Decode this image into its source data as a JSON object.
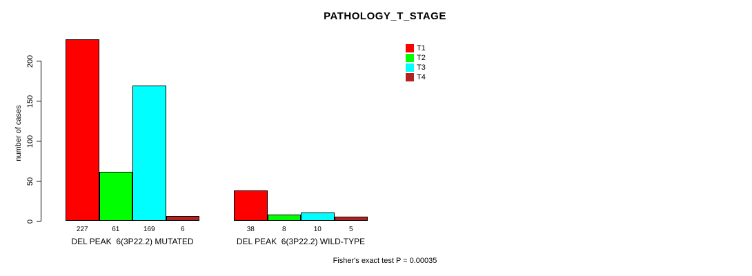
{
  "chart_data": {
    "type": "bar",
    "title": "PATHOLOGY_T_STAGE",
    "ylabel": "number of cases",
    "xlabel": "",
    "yticks": [
      0,
      50,
      100,
      150,
      200
    ],
    "ylim": [
      0,
      232
    ],
    "grid": false,
    "legend_position": "top-right",
    "categories": [
      "DEL PEAK  6(3P22.2) MUTATED",
      "DEL PEAK  6(3P22.2) WILD-TYPE"
    ],
    "series": [
      {
        "name": "T1",
        "color": "#FF0000",
        "values": [
          227,
          38
        ]
      },
      {
        "name": "T2",
        "color": "#00FF00",
        "values": [
          61,
          8
        ]
      },
      {
        "name": "T3",
        "color": "#00FFFF",
        "values": [
          169,
          10
        ]
      },
      {
        "name": "T4",
        "color": "#B22222",
        "values": [
          6,
          5
        ]
      }
    ],
    "bar_value_labels_shown": true,
    "annotation": "Fisher's exact test P = 0.00035"
  }
}
